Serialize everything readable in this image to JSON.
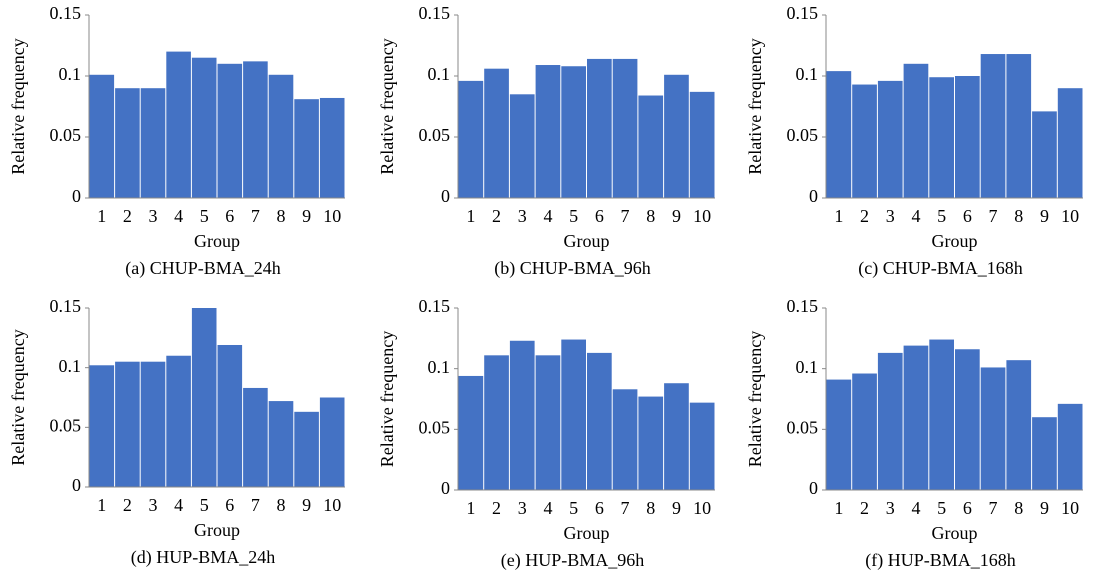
{
  "chart_data": [
    {
      "type": "bar",
      "title": "(a) CHUP-BMA_24h",
      "xlabel": "Group",
      "ylabel": "Relative frequency",
      "color": "#4472c4",
      "categories": [
        "1",
        "2",
        "3",
        "4",
        "5",
        "6",
        "7",
        "8",
        "9",
        "10"
      ],
      "values": [
        0.101,
        0.09,
        0.09,
        0.12,
        0.115,
        0.11,
        0.112,
        0.101,
        0.081,
        0.082
      ],
      "ylim": [
        0,
        0.15
      ],
      "yticks": [
        0,
        0.05,
        0.1,
        0.15
      ]
    },
    {
      "type": "bar",
      "title": "(b) CHUP-BMA_96h",
      "xlabel": "Group",
      "ylabel": "Relative frequency",
      "color": "#4472c4",
      "categories": [
        "1",
        "2",
        "3",
        "4",
        "5",
        "6",
        "7",
        "8",
        "9",
        "10"
      ],
      "values": [
        0.096,
        0.106,
        0.085,
        0.109,
        0.108,
        0.114,
        0.114,
        0.084,
        0.101,
        0.087
      ],
      "ylim": [
        0,
        0.15
      ],
      "yticks": [
        0,
        0.05,
        0.1,
        0.15
      ]
    },
    {
      "type": "bar",
      "title": "(c) CHUP-BMA_168h",
      "xlabel": "Group",
      "ylabel": "Relative frequency",
      "color": "#4472c4",
      "categories": [
        "1",
        "2",
        "3",
        "4",
        "5",
        "6",
        "7",
        "8",
        "9",
        "10"
      ],
      "values": [
        0.104,
        0.093,
        0.096,
        0.11,
        0.099,
        0.1,
        0.118,
        0.118,
        0.071,
        0.09
      ],
      "ylim": [
        0,
        0.15
      ],
      "yticks": [
        0,
        0.05,
        0.1,
        0.15
      ]
    },
    {
      "type": "bar",
      "title": "(d) HUP-BMA_24h",
      "xlabel": "Group",
      "ylabel": "Relative frequency",
      "color": "#4472c4",
      "categories": [
        "1",
        "2",
        "3",
        "4",
        "5",
        "6",
        "7",
        "8",
        "9",
        "10"
      ],
      "values": [
        0.102,
        0.105,
        0.105,
        0.11,
        0.15,
        0.119,
        0.083,
        0.072,
        0.063,
        0.075
      ],
      "ylim": [
        0,
        0.15
      ],
      "yticks": [
        0,
        0.05,
        0.1,
        0.15
      ]
    },
    {
      "type": "bar",
      "title": "(e) HUP-BMA_96h",
      "xlabel": "Group",
      "ylabel": "Relative frequency",
      "color": "#4472c4",
      "categories": [
        "1",
        "2",
        "3",
        "4",
        "5",
        "6",
        "7",
        "8",
        "9",
        "10"
      ],
      "values": [
        0.094,
        0.111,
        0.123,
        0.111,
        0.124,
        0.113,
        0.083,
        0.077,
        0.088,
        0.072
      ],
      "ylim": [
        0,
        0.15
      ],
      "yticks": [
        0,
        0.05,
        0.1,
        0.15
      ]
    },
    {
      "type": "bar",
      "title": "(f) HUP-BMA_168h",
      "xlabel": "Group",
      "ylabel": "Relative frequency",
      "color": "#4472c4",
      "categories": [
        "1",
        "2",
        "3",
        "4",
        "5",
        "6",
        "7",
        "8",
        "9",
        "10"
      ],
      "values": [
        0.091,
        0.096,
        0.113,
        0.119,
        0.124,
        0.116,
        0.101,
        0.107,
        0.06,
        0.071
      ],
      "ylim": [
        0,
        0.15
      ],
      "yticks": [
        0,
        0.05,
        0.1,
        0.15
      ]
    }
  ]
}
